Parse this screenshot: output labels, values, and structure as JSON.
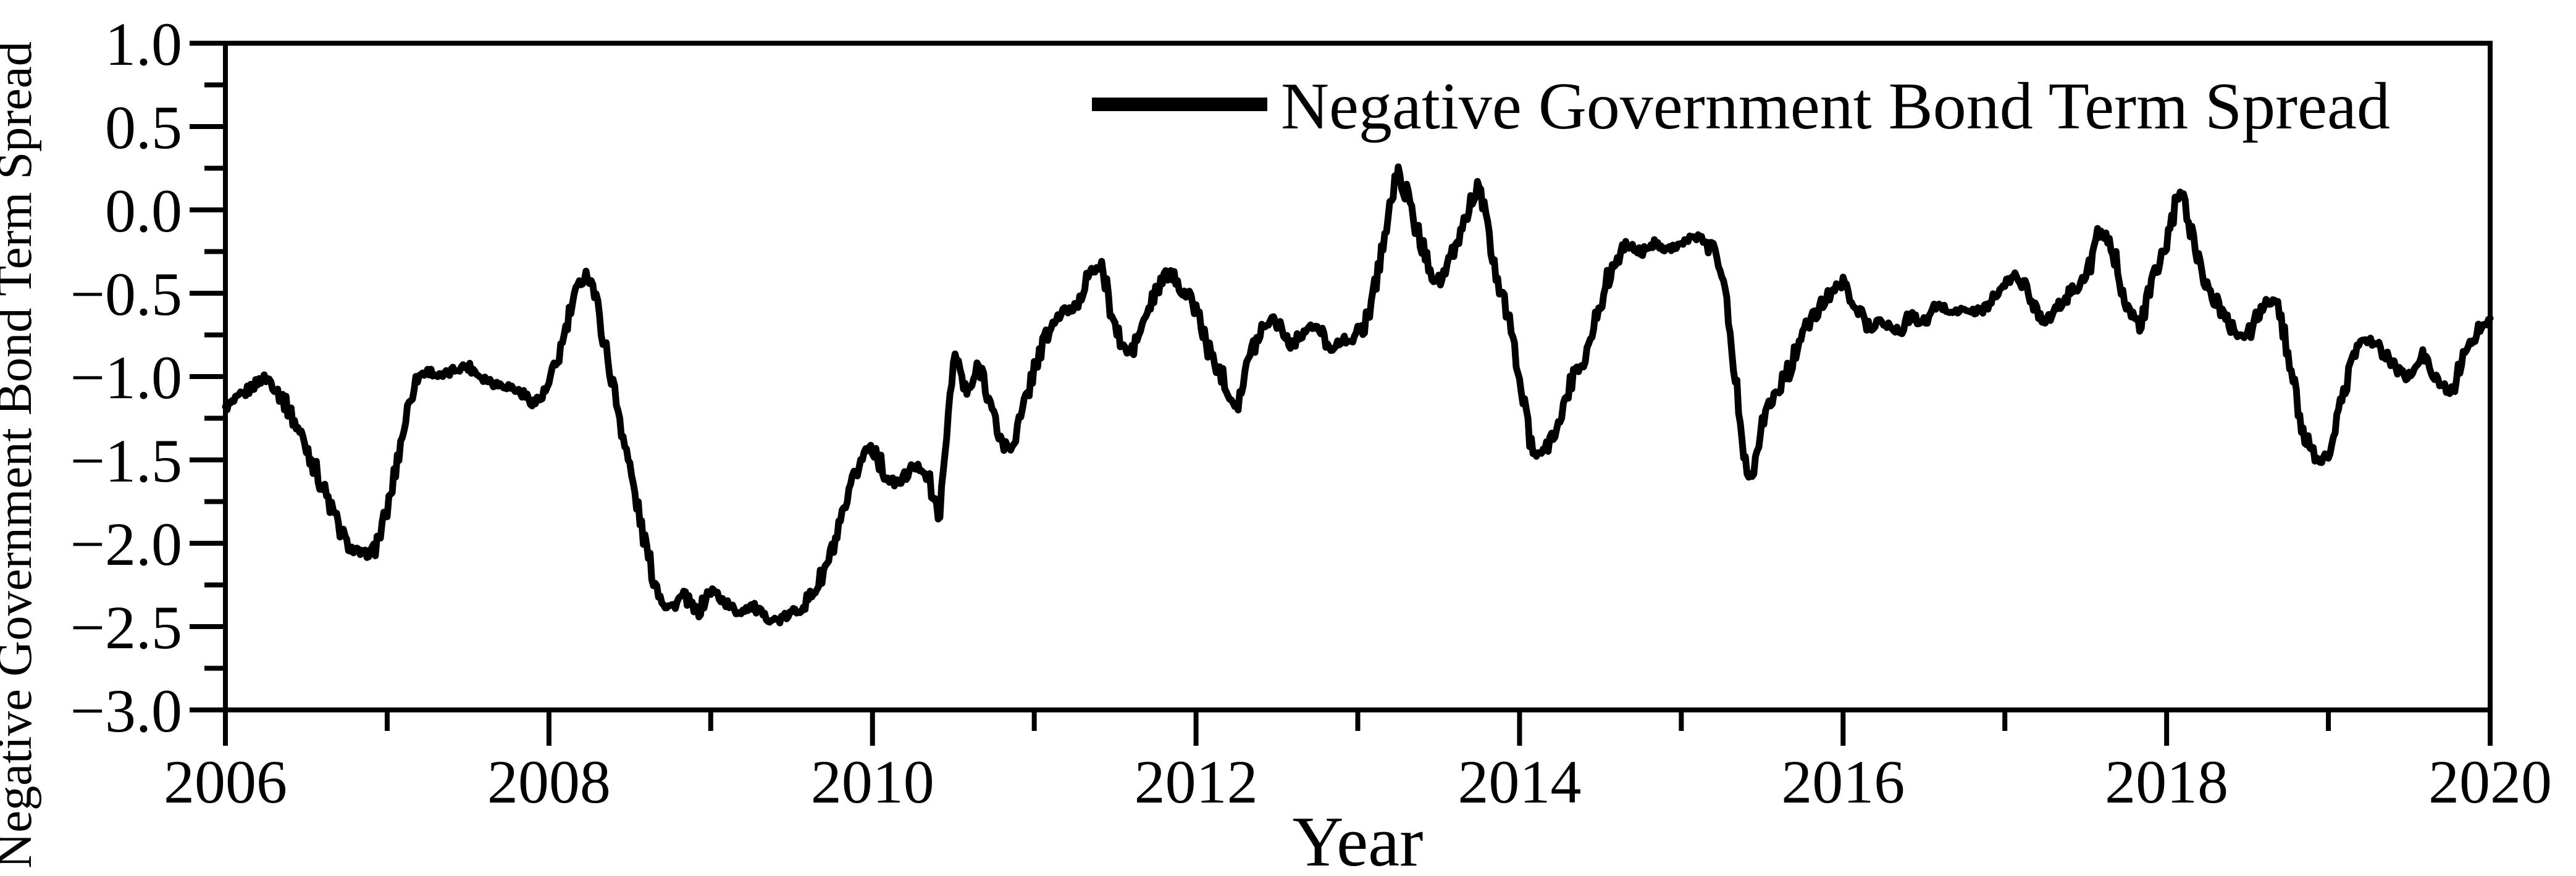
{
  "colors": {
    "line": "#000000",
    "background": "#ffffff",
    "text": "#000000"
  },
  "chart_data": {
    "type": "line",
    "title": "",
    "xlabel": "Year",
    "ylabel": "Negative Government Bond Term Spread",
    "xlim": [
      2006,
      2020
    ],
    "ylim": [
      -3.0,
      1.0
    ],
    "grid": false,
    "legend_position": "top-right",
    "x_major_ticks": [
      2006,
      2008,
      2010,
      2012,
      2014,
      2016,
      2018,
      2020
    ],
    "x_minor_ticks": [
      2007,
      2009,
      2011,
      2013,
      2015,
      2017,
      2019
    ],
    "x_tick_labels": [
      "2006",
      "2008",
      "2010",
      "2012",
      "2014",
      "2016",
      "2018",
      "2020"
    ],
    "y_major_ticks": [
      1.0,
      0.5,
      0.0,
      -0.5,
      -1.0,
      -1.5,
      -2.0,
      -2.5,
      -3.0
    ],
    "y_minor_ticks": [
      0.75,
      0.25,
      -0.25,
      -0.75,
      -1.25,
      -1.75,
      -2.25,
      -2.75
    ],
    "y_tick_labels": [
      "1.0",
      "0.5",
      "0.0",
      "−0.5",
      "−1.0",
      "−1.5",
      "−2.0",
      "−2.5",
      "−3.0"
    ],
    "series": [
      {
        "name": "Negative Government Bond Term Spread",
        "color": "#000000",
        "sampling": "monthly",
        "x": [
          2006.0,
          2006.0833,
          2006.1667,
          2006.25,
          2006.3333,
          2006.4167,
          2006.5,
          2006.5833,
          2006.6667,
          2006.75,
          2006.8333,
          2006.9167,
          2007.0,
          2007.0833,
          2007.1667,
          2007.25,
          2007.3333,
          2007.4167,
          2007.5,
          2007.5833,
          2007.6667,
          2007.75,
          2007.8333,
          2007.9167,
          2008.0,
          2008.0833,
          2008.1667,
          2008.25,
          2008.3333,
          2008.4167,
          2008.5,
          2008.5833,
          2008.6667,
          2008.75,
          2008.8333,
          2008.9167,
          2009.0,
          2009.0833,
          2009.1667,
          2009.25,
          2009.3333,
          2009.4167,
          2009.5,
          2009.5833,
          2009.6667,
          2009.75,
          2009.8333,
          2009.9167,
          2010.0,
          2010.0833,
          2010.1667,
          2010.25,
          2010.3333,
          2010.4167,
          2010.5,
          2010.5833,
          2010.6667,
          2010.75,
          2010.8333,
          2010.9167,
          2011.0,
          2011.0833,
          2011.1667,
          2011.25,
          2011.3333,
          2011.4167,
          2011.5,
          2011.5833,
          2011.6667,
          2011.75,
          2011.8333,
          2011.9167,
          2012.0,
          2012.0833,
          2012.1667,
          2012.25,
          2012.3333,
          2012.4167,
          2012.5,
          2012.5833,
          2012.6667,
          2012.75,
          2012.8333,
          2012.9167,
          2013.0,
          2013.0833,
          2013.1667,
          2013.25,
          2013.3333,
          2013.4167,
          2013.5,
          2013.5833,
          2013.6667,
          2013.75,
          2013.8333,
          2013.9167,
          2014.0,
          2014.0833,
          2014.1667,
          2014.25,
          2014.3333,
          2014.4167,
          2014.5,
          2014.5833,
          2014.6667,
          2014.75,
          2014.8333,
          2014.9167,
          2015.0,
          2015.0833,
          2015.1667,
          2015.25,
          2015.3333,
          2015.4167,
          2015.5,
          2015.5833,
          2015.6667,
          2015.75,
          2015.8333,
          2015.9167,
          2016.0,
          2016.0833,
          2016.1667,
          2016.25,
          2016.3333,
          2016.4167,
          2016.5,
          2016.5833,
          2016.6667,
          2016.75,
          2016.8333,
          2016.9167,
          2017.0,
          2017.0833,
          2017.1667,
          2017.25,
          2017.3333,
          2017.4167,
          2017.5,
          2017.5833,
          2017.6667,
          2017.75,
          2017.8333,
          2017.9167,
          2018.0,
          2018.0833,
          2018.1667,
          2018.25,
          2018.3333,
          2018.4167,
          2018.5,
          2018.5833,
          2018.6667,
          2018.75,
          2018.8333,
          2018.9167,
          2019.0,
          2019.0833,
          2019.1667,
          2019.25,
          2019.3333,
          2019.4167,
          2019.5,
          2019.5833,
          2019.6667,
          2019.75,
          2019.8333,
          2019.9167,
          2020.0
        ],
        "values": [
          -1.18,
          -1.13,
          -1.06,
          -1.01,
          -1.1,
          -1.25,
          -1.42,
          -1.62,
          -1.82,
          -2.0,
          -2.06,
          -2.03,
          -1.8,
          -1.4,
          -1.05,
          -0.97,
          -1.0,
          -0.96,
          -0.94,
          -1.0,
          -1.04,
          -1.06,
          -1.1,
          -1.15,
          -1.05,
          -0.8,
          -0.5,
          -0.4,
          -0.75,
          -1.15,
          -1.55,
          -1.95,
          -2.26,
          -2.38,
          -2.32,
          -2.41,
          -2.29,
          -2.35,
          -2.41,
          -2.38,
          -2.44,
          -2.46,
          -2.42,
          -2.36,
          -2.24,
          -2.05,
          -1.8,
          -1.53,
          -1.42,
          -1.6,
          -1.63,
          -1.55,
          -1.58,
          -1.78,
          -0.92,
          -1.1,
          -0.95,
          -1.25,
          -1.43,
          -1.25,
          -0.95,
          -0.75,
          -0.62,
          -0.58,
          -0.4,
          -0.37,
          -0.7,
          -0.86,
          -0.7,
          -0.5,
          -0.39,
          -0.48,
          -0.6,
          -0.85,
          -1.0,
          -1.15,
          -0.88,
          -0.7,
          -0.66,
          -0.8,
          -0.73,
          -0.71,
          -0.82,
          -0.78,
          -0.75,
          -0.55,
          -0.15,
          0.2,
          -0.02,
          -0.27,
          -0.42,
          -0.28,
          -0.05,
          0.12,
          -0.3,
          -0.6,
          -1.0,
          -1.45,
          -1.42,
          -1.25,
          -1.0,
          -0.85,
          -0.55,
          -0.33,
          -0.22,
          -0.25,
          -0.2,
          -0.23,
          -0.2,
          -0.17,
          -0.2,
          -0.37,
          -1.0,
          -1.58,
          -1.28,
          -1.1,
          -0.95,
          -0.75,
          -0.62,
          -0.51,
          -0.45,
          -0.58,
          -0.7,
          -0.66,
          -0.74,
          -0.64,
          -0.68,
          -0.58,
          -0.61,
          -0.6,
          -0.61,
          -0.55,
          -0.45,
          -0.4,
          -0.55,
          -0.65,
          -0.58,
          -0.48,
          -0.4,
          -0.16,
          -0.25,
          -0.55,
          -0.68,
          -0.42,
          -0.2,
          0.08,
          -0.18,
          -0.45,
          -0.6,
          -0.72,
          -0.75,
          -0.6,
          -0.56,
          -0.85,
          -1.28,
          -1.5,
          -1.45,
          -1.15,
          -0.85,
          -0.78,
          -0.85,
          -0.95,
          -1.0,
          -0.88,
          -1.0,
          -1.08,
          -0.9,
          -0.73,
          -0.65
        ]
      }
    ]
  }
}
